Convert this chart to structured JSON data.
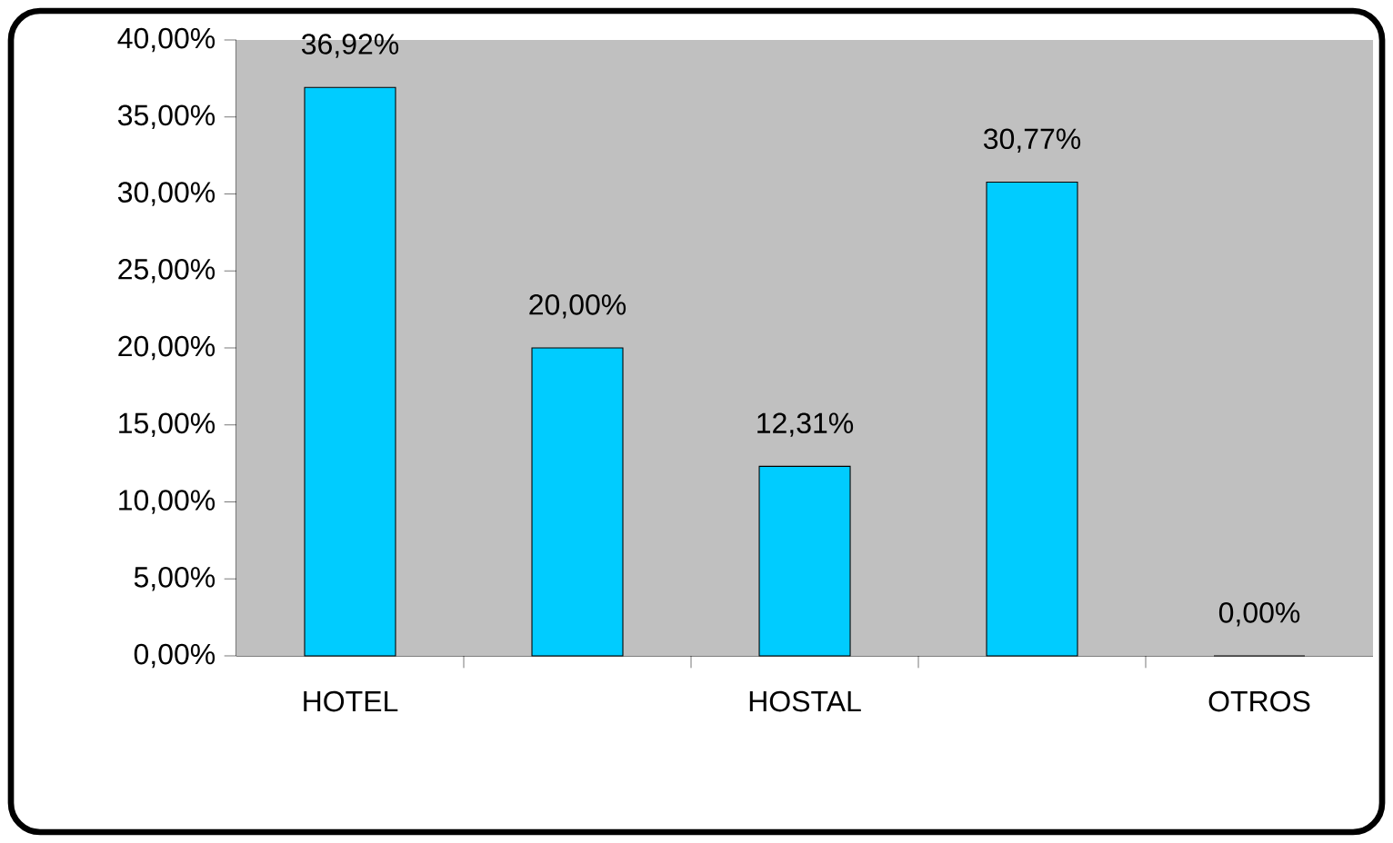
{
  "chart_data": {
    "type": "bar",
    "categories": [
      "HOTEL",
      null,
      "HOSTAL",
      null,
      "OTROS"
    ],
    "values": [
      36.92,
      20.0,
      12.31,
      30.77,
      0.0
    ],
    "value_labels": [
      "36,92%",
      "20,00%",
      "12,31%",
      "30,77%",
      "0,00%"
    ],
    "color": "#00ccff",
    "ylim": [
      0,
      40
    ],
    "yticks": [
      {
        "value": 0,
        "label": "0,00%"
      },
      {
        "value": 5,
        "label": "5,00%"
      },
      {
        "value": 10,
        "label": "10,00%"
      },
      {
        "value": 15,
        "label": "15,00%"
      },
      {
        "value": 20,
        "label": "20,00%"
      },
      {
        "value": 25,
        "label": "25,00%"
      },
      {
        "value": 30,
        "label": "30,00%"
      },
      {
        "value": 35,
        "label": "35,00%"
      },
      {
        "value": 40,
        "label": "40,00%"
      }
    ],
    "grid": false
  }
}
